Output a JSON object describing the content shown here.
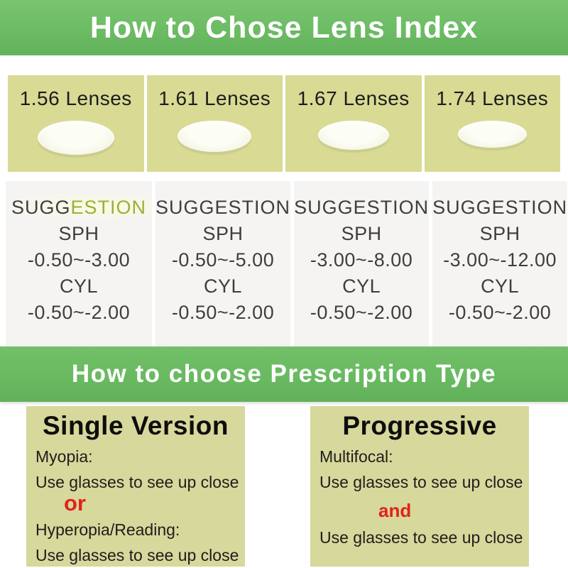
{
  "colors": {
    "banner_green": "#6cbc64",
    "card_khaki": "#d9da94",
    "box_khaki": "#d7d89b",
    "column_bg": "#f5f4f2",
    "accent_red": "#e02318",
    "highlight_olive": "#9fae35"
  },
  "header": {
    "title": "How to Chose Lens Index"
  },
  "lens_cards": [
    {
      "label": "1.56 Lenses"
    },
    {
      "label": "1.61 Lenses"
    },
    {
      "label": "1.67 Lenses"
    },
    {
      "label": "1.74 Lenses"
    }
  ],
  "suggestions": {
    "columns": [
      {
        "title_part1": "SUGG",
        "title_part2": "ESTION",
        "sph_label": "SPH",
        "sph_range": "-0.50~-3.00",
        "cyl_label": "CYL",
        "cyl_range": "-0.50~-2.00"
      },
      {
        "title": "SUGGESTION",
        "sph_label": "SPH",
        "sph_range": "-0.50~-5.00",
        "cyl_label": "CYL",
        "cyl_range": "-0.50~-2.00"
      },
      {
        "title": "SUGGESTION",
        "sph_label": "SPH",
        "sph_range": "-3.00~-8.00",
        "cyl_label": "CYL",
        "cyl_range": "-0.50~-2.00"
      },
      {
        "title": "SUGGESTION",
        "sph_label": "SPH",
        "sph_range": "-3.00~-12.00",
        "cyl_label": "CYL",
        "cyl_range": "-0.50~-2.00"
      }
    ]
  },
  "prescription_banner": {
    "title": "How to choose Prescription Type"
  },
  "prescription_types": [
    {
      "title": "Single Version",
      "line1": "Myopia:",
      "line2": "Use glasses to see up close",
      "connector": "or",
      "line3": "Hyperopia/Reading:",
      "line4": "Use glasses to see up close"
    },
    {
      "title": "Progressive",
      "line1": "Multifocal:",
      "line2": "Use glasses to see up close",
      "connector": "and",
      "line3": "Use glasses to see up close"
    }
  ]
}
